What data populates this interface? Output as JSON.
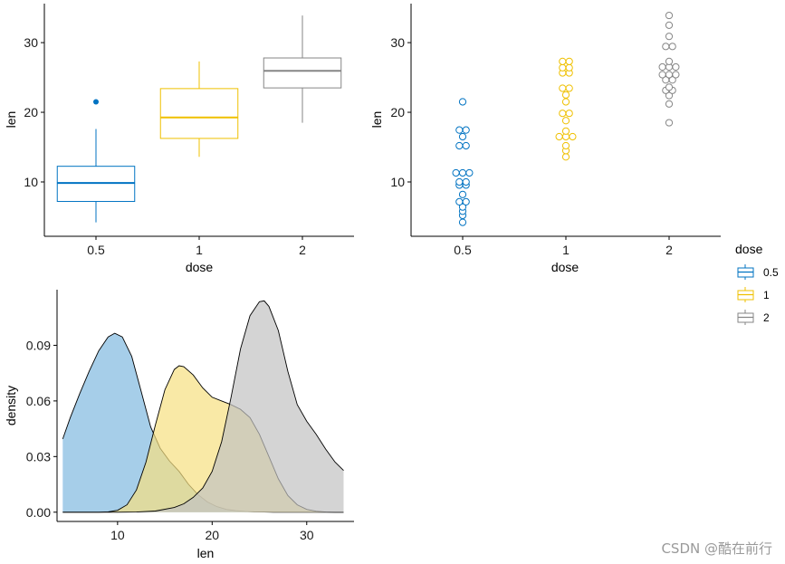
{
  "colors": {
    "0.5": "#0073C2",
    "1": "#EFC000",
    "2": "#868686"
  },
  "legend": {
    "title": "dose",
    "items": [
      {
        "key": "0.5",
        "label": "0.5"
      },
      {
        "key": "1",
        "label": "1"
      },
      {
        "key": "2",
        "label": "2"
      }
    ]
  },
  "watermark": "CSDN @酷在前行",
  "chart_data": [
    {
      "type": "box",
      "xlabel": "dose",
      "ylabel": "len",
      "categories": [
        "0.5",
        "1",
        "2"
      ],
      "yticks": [
        10,
        20,
        30
      ],
      "ylim": [
        2.2,
        35.6
      ],
      "boxes": [
        {
          "category": "0.5",
          "lower": 4.2,
          "q1": 7.2,
          "median": 9.85,
          "q3": 12.25,
          "upper": 17.6,
          "outliers": [
            21.5
          ]
        },
        {
          "category": "1",
          "lower": 13.6,
          "q1": 16.25,
          "median": 19.25,
          "q3": 23.4,
          "upper": 27.3,
          "outliers": []
        },
        {
          "category": "2",
          "lower": 18.5,
          "q1": 23.5,
          "median": 25.95,
          "q3": 27.8,
          "upper": 33.9,
          "outliers": []
        }
      ]
    },
    {
      "type": "scatter",
      "subtype": "dotplot",
      "xlabel": "dose",
      "ylabel": "len",
      "categories": [
        "0.5",
        "1",
        "2"
      ],
      "yticks": [
        10,
        20,
        30
      ],
      "ylim": [
        2.2,
        35.6
      ],
      "groups": [
        {
          "category": "0.5",
          "values": [
            4.2,
            5.2,
            5.8,
            6.4,
            7.0,
            7.3,
            8.2,
            9.4,
            9.7,
            10.0,
            10.0,
            11.2,
            11.2,
            11.5,
            15.2,
            15.2,
            16.5,
            17.3,
            17.6,
            21.5
          ]
        },
        {
          "category": "1",
          "values": [
            13.6,
            14.5,
            15.2,
            16.5,
            16.5,
            17.3,
            18.8,
            19.7,
            20.0,
            21.5,
            22.5,
            23.3,
            23.6,
            25.5,
            25.8,
            26.4,
            26.4,
            27.3,
            27.3,
            16.5
          ]
        },
        {
          "category": "2",
          "values": [
            18.5,
            21.2,
            22.4,
            23.0,
            23.3,
            23.6,
            24.5,
            24.8,
            25.5,
            25.5,
            26.4,
            26.4,
            26.7,
            27.3,
            29.4,
            29.5,
            30.9,
            32.5,
            33.9,
            25.2
          ]
        }
      ]
    },
    {
      "type": "area",
      "subtype": "density",
      "xlabel": "len",
      "ylabel": "density",
      "xticks": [
        10,
        20,
        30
      ],
      "yticks": [
        0.0,
        0.03,
        0.06,
        0.09
      ],
      "ytick_labels": [
        "0.00",
        "0.03",
        "0.06",
        "0.09"
      ],
      "xlim": [
        3.6,
        35.0
      ],
      "ylim": [
        -0.005,
        0.12
      ],
      "series": [
        {
          "key": "0.5",
          "x": [
            4.2,
            5.0,
            6.0,
            7.0,
            8.0,
            9.0,
            9.7,
            10.5,
            11.5,
            12.5,
            13.5,
            14.5,
            15.5,
            16.5,
            17.5,
            18.5,
            19.5,
            20.5,
            21.5,
            22.5,
            23.5,
            24.5,
            25.5,
            26.5,
            27.5,
            28.5,
            29.5,
            30.5,
            31.5,
            32.5,
            33.5,
            33.9
          ],
          "y": [
            0.0395,
            0.051,
            0.064,
            0.076,
            0.087,
            0.0945,
            0.0965,
            0.0945,
            0.084,
            0.065,
            0.046,
            0.0345,
            0.0275,
            0.022,
            0.015,
            0.0095,
            0.0055,
            0.003,
            0.0015,
            0.0008,
            0.0004,
            0.0002,
            0.0001,
            0,
            0,
            0,
            0,
            0,
            0,
            0,
            0,
            0
          ]
        },
        {
          "key": "1",
          "x": [
            4.2,
            5.0,
            6.0,
            7.0,
            8.0,
            9.0,
            10.0,
            11.0,
            12.0,
            13.0,
            14.0,
            15.0,
            16.0,
            16.5,
            17.0,
            18.0,
            19.0,
            20.0,
            21.0,
            22.0,
            23.0,
            24.0,
            25.0,
            26.0,
            27.0,
            28.0,
            29.0,
            30.0,
            31.0,
            32.0,
            33.0,
            33.9
          ],
          "y": [
            0,
            0,
            0,
            0,
            0,
            0.0002,
            0.001,
            0.004,
            0.012,
            0.027,
            0.047,
            0.066,
            0.077,
            0.079,
            0.0785,
            0.074,
            0.067,
            0.062,
            0.06,
            0.058,
            0.0555,
            0.051,
            0.042,
            0.03,
            0.018,
            0.009,
            0.004,
            0.0015,
            0.0005,
            0.0001,
            0,
            0
          ]
        },
        {
          "key": "2",
          "x": [
            4.2,
            8.0,
            10.0,
            12.0,
            14.0,
            16.0,
            17.0,
            18.0,
            19.0,
            20.0,
            21.0,
            22.0,
            23.0,
            24.0,
            25.0,
            25.5,
            26.0,
            27.0,
            28.0,
            29.0,
            30.0,
            31.0,
            32.0,
            33.0,
            33.9
          ],
          "y": [
            0,
            0,
            0,
            0.0001,
            0.0006,
            0.0025,
            0.0045,
            0.008,
            0.013,
            0.022,
            0.038,
            0.062,
            0.088,
            0.106,
            0.1135,
            0.114,
            0.111,
            0.098,
            0.076,
            0.058,
            0.049,
            0.042,
            0.034,
            0.027,
            0.0225
          ]
        }
      ]
    }
  ]
}
